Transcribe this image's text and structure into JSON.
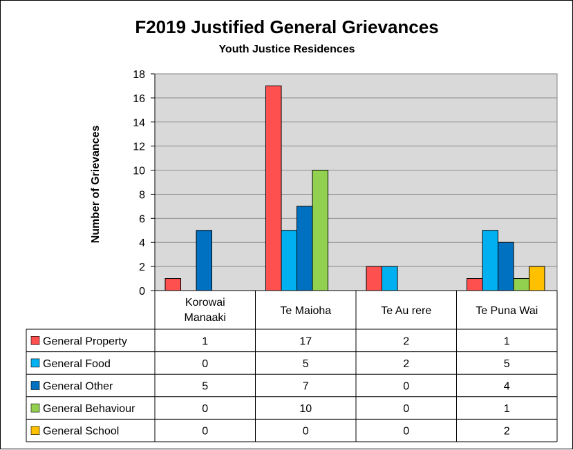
{
  "chart_data": {
    "type": "bar",
    "title": "F2019 Justified General Grievances",
    "subtitle": "Youth Justice Residences",
    "xlabel": "",
    "ylabel": "Number of Grievances",
    "ylim": [
      0,
      18
    ],
    "yticks": [
      0,
      2,
      4,
      6,
      8,
      10,
      12,
      14,
      16,
      18
    ],
    "grid": true,
    "plot_background": "#d9d9d9",
    "categories": [
      [
        "Korowai",
        "Manaaki"
      ],
      [
        "Te Maioha"
      ],
      [
        "Te Au rere"
      ],
      [
        "Te Puna Wai"
      ]
    ],
    "series": [
      {
        "name": "General Property",
        "color": "#ff5050",
        "values": [
          1,
          17,
          2,
          1
        ]
      },
      {
        "name": "General Food",
        "color": "#00b0f0",
        "values": [
          0,
          5,
          2,
          5
        ]
      },
      {
        "name": "General Other",
        "color": "#0070c0",
        "values": [
          5,
          7,
          0,
          4
        ]
      },
      {
        "name": "General Behaviour",
        "color": "#92d050",
        "values": [
          0,
          10,
          0,
          1
        ]
      },
      {
        "name": "General School",
        "color": "#ffc000",
        "values": [
          0,
          0,
          0,
          2
        ]
      }
    ],
    "legend": "data-table"
  }
}
